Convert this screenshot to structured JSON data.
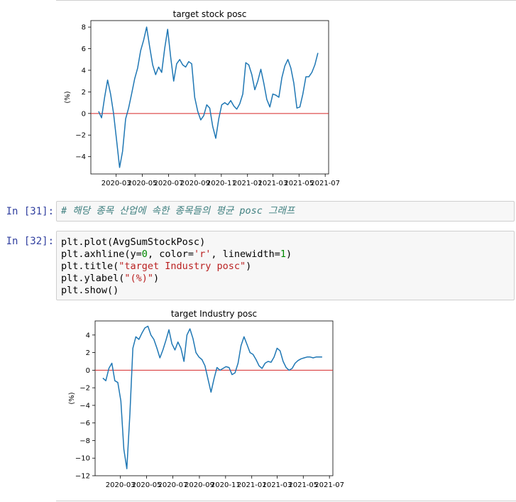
{
  "prompts": {
    "md_cell": "In [31]:",
    "code_cell": "In [32]:"
  },
  "markdown_comment": "# 해당 종목 산업에 속한 종목들의 평균 posc 그래프",
  "code_lines": [
    "plt.plot(AvgSumStockPosc)",
    "plt.axhline(y=0, color='r', linewidth=1)",
    "plt.title(\"target Industry posc\")",
    "plt.ylabel(\"(%)\")",
    "plt.show()"
  ],
  "colors": {
    "line": "#1f77b4",
    "hline": "#d62728",
    "prompt": "#303f9f"
  },
  "chart_data": [
    {
      "type": "line",
      "title": "target stock posc",
      "ylabel": "(%)",
      "xlabel": "",
      "ylim": [
        -5.6,
        8.6
      ],
      "yticks": [
        -4,
        -2,
        0,
        2,
        4,
        6,
        8
      ],
      "x_ticks": [
        "2020-03",
        "2020-05",
        "2020-07",
        "2020-09",
        "2020-11",
        "2021-01",
        "2021-03",
        "2021-05",
        "2021-07"
      ],
      "hline": 0,
      "series": [
        {
          "x": [
            "2020-01-20",
            "2020-01-27",
            "2020-02-03",
            "2020-02-10",
            "2020-02-17",
            "2020-02-24",
            "2020-03-02",
            "2020-03-09",
            "2020-03-16",
            "2020-03-23",
            "2020-03-30",
            "2020-04-06",
            "2020-04-13",
            "2020-04-20",
            "2020-04-27",
            "2020-05-04",
            "2020-05-11",
            "2020-05-18",
            "2020-05-25",
            "2020-06-01",
            "2020-06-08",
            "2020-06-15",
            "2020-06-22",
            "2020-06-29",
            "2020-07-06",
            "2020-07-13",
            "2020-07-20",
            "2020-07-27",
            "2020-08-03",
            "2020-08-10",
            "2020-08-17",
            "2020-08-24",
            "2020-08-31",
            "2020-09-07",
            "2020-09-14",
            "2020-09-21",
            "2020-09-28",
            "2020-10-05",
            "2020-10-12",
            "2020-10-19",
            "2020-10-26",
            "2020-11-02",
            "2020-11-09",
            "2020-11-16",
            "2020-11-23",
            "2020-11-30",
            "2020-12-07",
            "2020-12-14",
            "2020-12-21",
            "2020-12-28",
            "2021-01-04",
            "2021-01-11",
            "2021-01-18",
            "2021-01-25",
            "2021-02-01",
            "2021-02-08",
            "2021-02-15",
            "2021-02-22",
            "2021-03-01",
            "2021-03-08",
            "2021-03-15",
            "2021-03-22",
            "2021-03-29",
            "2021-04-05",
            "2021-04-12",
            "2021-04-19",
            "2021-04-26",
            "2021-05-03",
            "2021-05-10",
            "2021-05-17",
            "2021-05-24",
            "2021-05-31",
            "2021-06-07",
            "2021-06-14"
          ],
          "values": [
            0.2,
            -0.4,
            1.5,
            3.1,
            1.8,
            0.0,
            -2.5,
            -5.0,
            -3.5,
            -0.5,
            0.5,
            1.8,
            3.2,
            4.2,
            5.8,
            6.8,
            8.0,
            6.2,
            4.5,
            3.6,
            4.3,
            3.8,
            6.0,
            7.8,
            5.2,
            3.0,
            4.6,
            5.0,
            4.5,
            4.3,
            4.8,
            4.6,
            1.5,
            0.2,
            -0.6,
            -0.2,
            0.8,
            0.5,
            -1.2,
            -2.3,
            -0.5,
            0.8,
            1.0,
            0.8,
            1.2,
            0.7,
            0.4,
            0.9,
            1.8,
            4.7,
            4.5,
            3.6,
            2.2,
            3.0,
            4.1,
            2.8,
            1.3,
            0.6,
            1.8,
            1.7,
            1.5,
            3.3,
            4.4,
            5.0,
            4.2,
            2.8,
            0.5,
            0.6,
            1.8,
            3.4,
            3.4,
            3.8,
            4.5,
            5.6
          ],
          "color": "#1f77b4"
        }
      ]
    },
    {
      "type": "line",
      "title": "target Industry posc",
      "ylabel": "(%)",
      "xlabel": "",
      "ylim": [
        -12.0,
        5.6
      ],
      "yticks": [
        -12,
        -10,
        -8,
        -6,
        -4,
        -2,
        0,
        2,
        4
      ],
      "x_ticks": [
        "2020-03",
        "2020-05",
        "2020-07",
        "2020-09",
        "2020-11",
        "2021-01",
        "2021-03",
        "2021-05",
        "2021-07"
      ],
      "hline": 0,
      "series": [
        {
          "x": [
            "2020-01-20",
            "2020-01-27",
            "2020-02-03",
            "2020-02-10",
            "2020-02-17",
            "2020-02-24",
            "2020-03-02",
            "2020-03-09",
            "2020-03-16",
            "2020-03-23",
            "2020-03-30",
            "2020-04-06",
            "2020-04-13",
            "2020-04-20",
            "2020-04-27",
            "2020-05-04",
            "2020-05-11",
            "2020-05-18",
            "2020-05-25",
            "2020-06-01",
            "2020-06-08",
            "2020-06-15",
            "2020-06-22",
            "2020-06-29",
            "2020-07-06",
            "2020-07-13",
            "2020-07-20",
            "2020-07-27",
            "2020-08-03",
            "2020-08-10",
            "2020-08-17",
            "2020-08-24",
            "2020-08-31",
            "2020-09-07",
            "2020-09-14",
            "2020-09-21",
            "2020-09-28",
            "2020-10-05",
            "2020-10-12",
            "2020-10-19",
            "2020-10-26",
            "2020-11-02",
            "2020-11-09",
            "2020-11-16",
            "2020-11-23",
            "2020-11-30",
            "2020-12-07",
            "2020-12-14",
            "2020-12-21",
            "2020-12-28",
            "2021-01-04",
            "2021-01-11",
            "2021-01-18",
            "2021-01-25",
            "2021-02-01",
            "2021-02-08",
            "2021-02-15",
            "2021-02-22",
            "2021-03-01",
            "2021-03-08",
            "2021-03-15",
            "2021-03-22",
            "2021-03-29",
            "2021-04-05",
            "2021-04-12",
            "2021-04-19",
            "2021-04-26",
            "2021-05-03",
            "2021-05-10",
            "2021-05-17",
            "2021-05-24",
            "2021-05-31",
            "2021-06-07",
            "2021-06-14"
          ],
          "values": [
            -0.9,
            -1.2,
            0.2,
            0.8,
            -1.2,
            -1.4,
            -3.5,
            -9.0,
            -11.2,
            -5.0,
            2.5,
            3.8,
            3.5,
            4.2,
            4.8,
            5.0,
            4.0,
            3.5,
            2.5,
            1.4,
            2.3,
            3.4,
            4.6,
            3.0,
            2.3,
            3.2,
            2.5,
            1.0,
            4.0,
            4.7,
            3.6,
            2.0,
            1.5,
            1.2,
            0.5,
            -1.0,
            -2.5,
            -1.0,
            0.3,
            0.0,
            0.2,
            0.4,
            0.3,
            -0.5,
            -0.3,
            0.8,
            2.8,
            3.8,
            2.9,
            2.0,
            1.8,
            1.2,
            0.5,
            0.2,
            0.8,
            1.0,
            0.9,
            1.5,
            2.5,
            2.2,
            1.0,
            0.3,
            0.0,
            0.2,
            0.8,
            1.1,
            1.3,
            1.4,
            1.5,
            1.5,
            1.4,
            1.5,
            1.5,
            1.5
          ],
          "color": "#1f77b4"
        }
      ]
    }
  ]
}
